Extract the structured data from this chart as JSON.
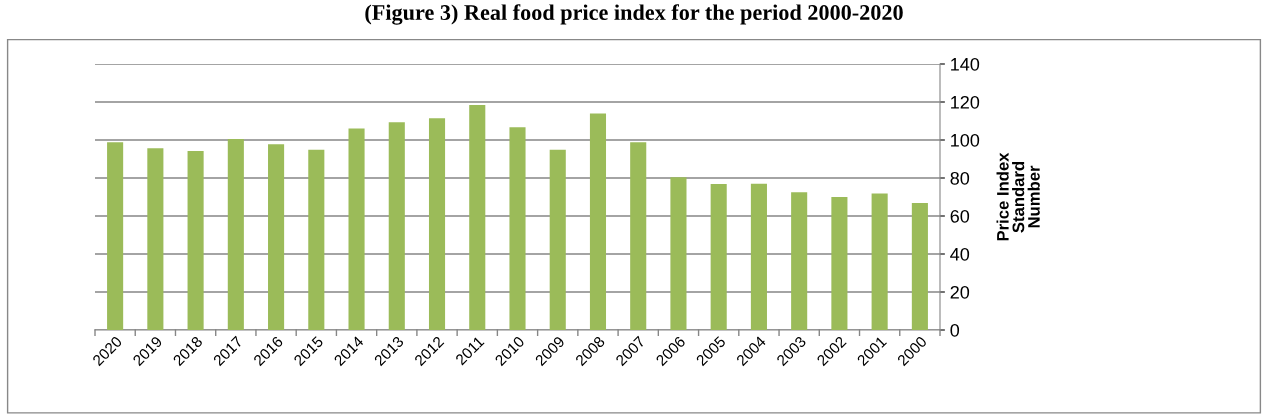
{
  "chart_data": {
    "type": "bar",
    "title": "(Figure 3) Real food price index for the period 2000-2020",
    "ylabel": "Price Index\nStandard\nNumber",
    "categories": [
      "2020",
      "2019",
      "2018",
      "2017",
      "2016",
      "2015",
      "2014",
      "2013",
      "2012",
      "2011",
      "2010",
      "2009",
      "2008",
      "2007",
      "2006",
      "2005",
      "2004",
      "2003",
      "2002",
      "2001",
      "2000"
    ],
    "values": [
      98.8,
      95.6,
      94.2,
      100.5,
      97.7,
      94.9,
      106.1,
      109.3,
      111.4,
      118.4,
      106.7,
      94.9,
      114,
      98.8,
      80.4,
      76.8,
      77,
      72.5,
      70,
      71.8,
      66.8
    ],
    "color": "#9bbb59",
    "ylim": [
      0,
      140
    ],
    "yticks": [
      0,
      20,
      40,
      60,
      80,
      100,
      120,
      140
    ],
    "grid": "y",
    "legend": false
  }
}
